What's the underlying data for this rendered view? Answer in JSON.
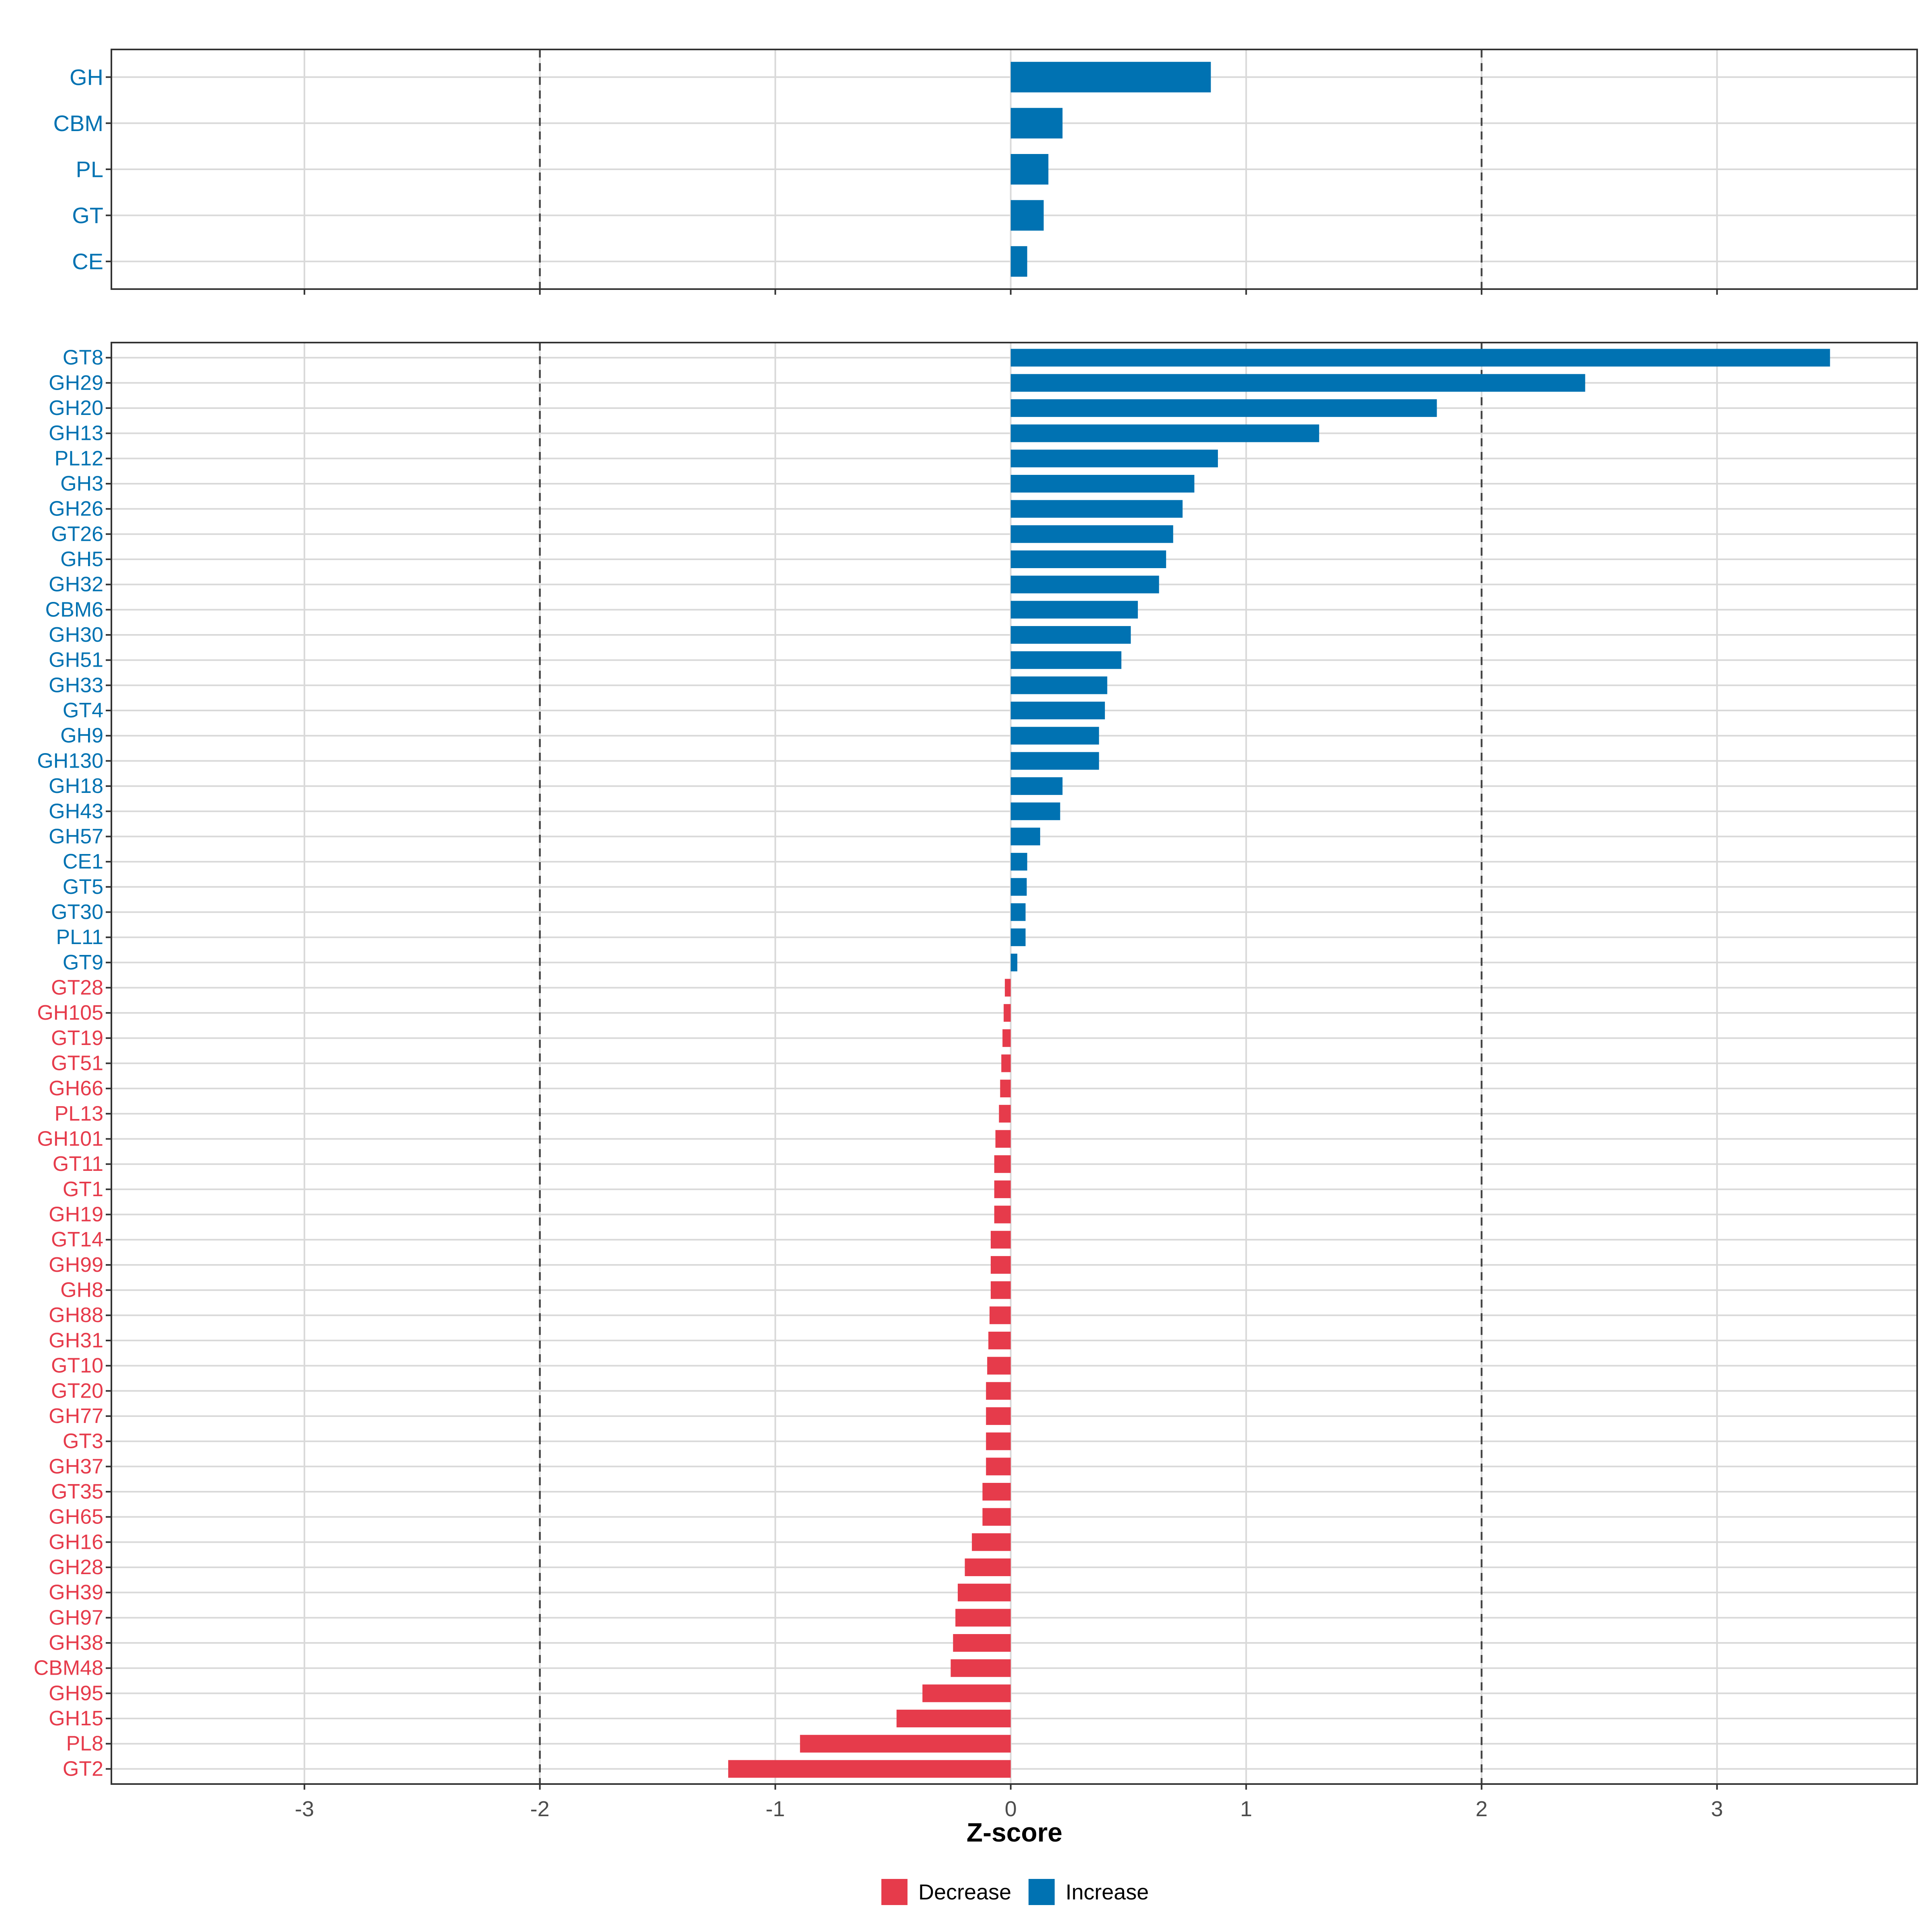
{
  "colors": {
    "increase": "#0072B2",
    "decrease": "#E63B4B",
    "grid": "#D9D9D9",
    "panel_border": "#333333",
    "threshold_line": "#444444",
    "tick_text": "#4D4D4D"
  },
  "chart_data": [
    {
      "type": "bar",
      "orientation": "horizontal",
      "panel": "top",
      "categories": [
        "GH",
        "CBM",
        "PL",
        "GT",
        "CE"
      ],
      "values": [
        0.85,
        0.22,
        0.16,
        0.14,
        0.07
      ],
      "xlim": [
        -3.82,
        3.85
      ],
      "grid": true,
      "threshold_lines": [
        -2,
        2
      ]
    },
    {
      "type": "bar",
      "orientation": "horizontal",
      "panel": "bottom",
      "categories": [
        "GT8",
        "GH29",
        "GH20",
        "GH13",
        "PL12",
        "GH3",
        "GH26",
        "GT26",
        "GH5",
        "GH32",
        "CBM6",
        "GH30",
        "GH51",
        "GH33",
        "GT4",
        "GH9",
        "GH130",
        "GH18",
        "GH43",
        "GH57",
        "CE1",
        "GT5",
        "GT30",
        "PL11",
        "GT9",
        "GT28",
        "GH105",
        "GT19",
        "GT51",
        "GH66",
        "PL13",
        "GH101",
        "GT11",
        "GT1",
        "GH19",
        "GT14",
        "GH99",
        "GH8",
        "GH88",
        "GH31",
        "GT10",
        "GT20",
        "GH77",
        "GT3",
        "GH37",
        "GT35",
        "GH65",
        "GH16",
        "GH28",
        "GH39",
        "GH97",
        "GH38",
        "CBM48",
        "GH95",
        "GH15",
        "PL8",
        "GT2"
      ],
      "values": [
        3.48,
        2.44,
        1.81,
        1.31,
        0.88,
        0.78,
        0.73,
        0.69,
        0.66,
        0.63,
        0.54,
        0.51,
        0.47,
        0.41,
        0.4,
        0.375,
        0.375,
        0.22,
        0.21,
        0.125,
        0.07,
        0.068,
        0.063,
        0.063,
        0.028,
        -0.025,
        -0.03,
        -0.035,
        -0.04,
        -0.045,
        -0.05,
        -0.065,
        -0.07,
        -0.07,
        -0.07,
        -0.085,
        -0.085,
        -0.085,
        -0.09,
        -0.095,
        -0.1,
        -0.105,
        -0.105,
        -0.105,
        -0.105,
        -0.12,
        -0.12,
        -0.165,
        -0.195,
        -0.225,
        -0.235,
        -0.245,
        -0.255,
        -0.375,
        -0.485,
        -0.895,
        -1.2
      ],
      "xlim": [
        -3.82,
        3.85
      ],
      "x_ticks": [
        "-3",
        "-2",
        "-1",
        "0",
        "1",
        "2",
        "3"
      ],
      "xlabel": "Z-score",
      "grid": true,
      "threshold_lines": [
        -2,
        2
      ]
    }
  ],
  "legend": {
    "placement": "bottom",
    "entries": [
      {
        "label": "Decrease",
        "color_key": "decrease"
      },
      {
        "label": "Increase",
        "color_key": "increase"
      }
    ]
  }
}
